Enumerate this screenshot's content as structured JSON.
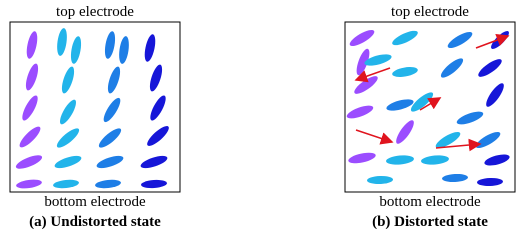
{
  "panels": [
    {
      "top_label": "top electrode",
      "bottom_label": "bottom electrode",
      "caption": "(a) Undistorted state"
    },
    {
      "top_label": "top electrode",
      "bottom_label": "bottom electrode",
      "caption": "(b) Distorted state"
    }
  ]
}
